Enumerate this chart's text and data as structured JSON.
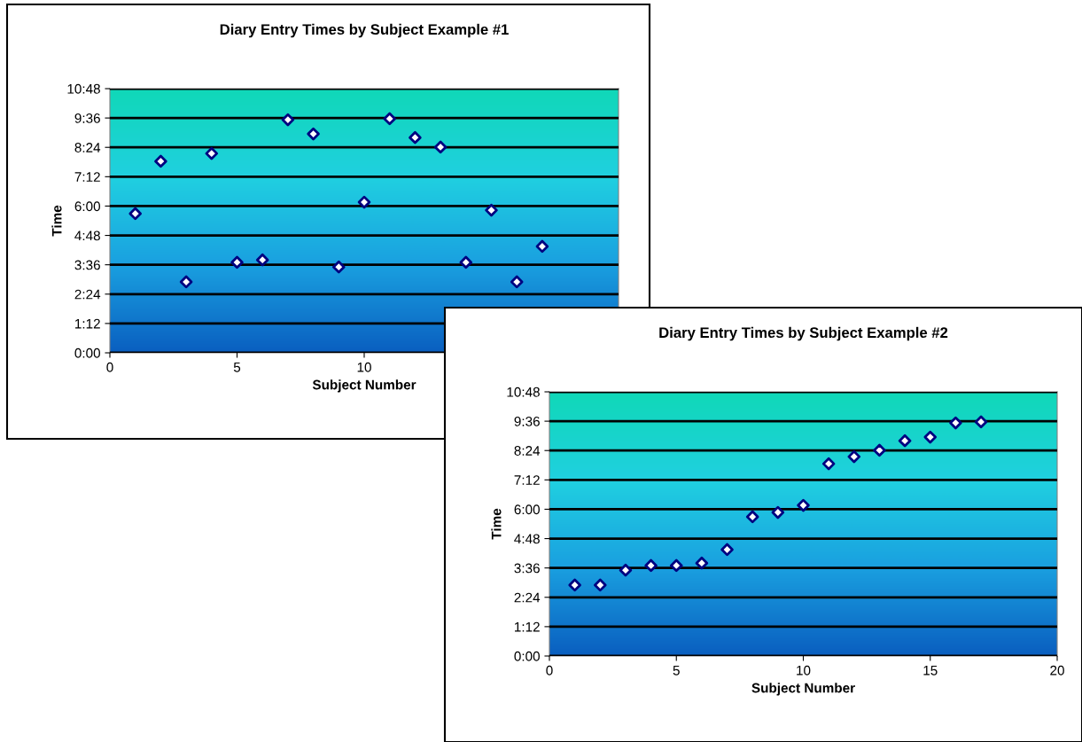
{
  "chart_data": [
    {
      "type": "scatter",
      "title": "Diary Entry Times by Subject Example #1",
      "xlabel": "Subject Number",
      "ylabel": "Time",
      "x": [
        1,
        2,
        3,
        4,
        5,
        6,
        7,
        8,
        9,
        10,
        11,
        12,
        13,
        14,
        15,
        16,
        17
      ],
      "values": [
        5.69,
        7.83,
        2.9,
        8.15,
        3.7,
        3.8,
        9.53,
        8.95,
        3.51,
        6.16,
        9.57,
        8.8,
        8.41,
        3.7,
        5.83,
        2.9,
        4.35
      ],
      "color": "#000080",
      "marker": "diamond",
      "grid": "y",
      "legend": false,
      "xlim": [
        0,
        20
      ],
      "xticks": [
        0,
        5,
        10
      ],
      "ylim": [
        0,
        10.8
      ],
      "yticks": [
        {
          "value": 0,
          "label": "0:00"
        },
        {
          "value": 1.2,
          "label": "1:12"
        },
        {
          "value": 2.4,
          "label": "2:24"
        },
        {
          "value": 3.6,
          "label": "3:36"
        },
        {
          "value": 4.8,
          "label": "4:48"
        },
        {
          "value": 6,
          "label": "6:00"
        },
        {
          "value": 7.2,
          "label": "7:12"
        },
        {
          "value": 8.4,
          "label": "8:24"
        },
        {
          "value": 9.6,
          "label": "9:36"
        },
        {
          "value": 10.8,
          "label": "10:48"
        }
      ]
    },
    {
      "type": "scatter",
      "title": "Diary Entry Times by Subject Example #2",
      "xlabel": "Subject Number",
      "ylabel": "Time",
      "x": [
        1,
        2,
        3,
        4,
        5,
        6,
        7,
        8,
        9,
        10,
        11,
        12,
        13,
        14,
        15,
        16,
        17
      ],
      "values": [
        2.9,
        2.9,
        3.51,
        3.7,
        3.7,
        3.8,
        4.35,
        5.69,
        5.87,
        6.16,
        7.86,
        8.15,
        8.41,
        8.8,
        8.95,
        9.53,
        9.57
      ],
      "color": "#000080",
      "marker": "diamond",
      "grid": "y",
      "legend": false,
      "xlim": [
        0,
        20
      ],
      "xticks": [
        0,
        5,
        10,
        15,
        20
      ],
      "ylim": [
        0,
        10.8
      ],
      "yticks": [
        {
          "value": 0,
          "label": "0:00"
        },
        {
          "value": 1.2,
          "label": "1:12"
        },
        {
          "value": 2.4,
          "label": "2:24"
        },
        {
          "value": 3.6,
          "label": "3:36"
        },
        {
          "value": 4.8,
          "label": "4:48"
        },
        {
          "value": 6,
          "label": "6:00"
        },
        {
          "value": 7.2,
          "label": "7:12"
        },
        {
          "value": 8.4,
          "label": "8:24"
        },
        {
          "value": 9.6,
          "label": "9:36"
        },
        {
          "value": 10.8,
          "label": "10:48"
        }
      ]
    }
  ]
}
